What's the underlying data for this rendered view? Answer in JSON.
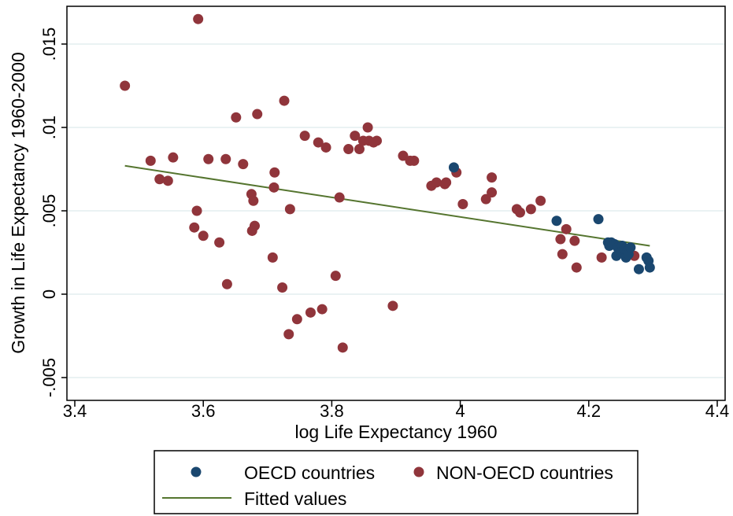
{
  "chart_data": {
    "type": "scatter",
    "xlabel": "log Life Expectancy 1960",
    "ylabel": "Growth in Life Expectancy 1960-2000",
    "xlim": [
      3.4,
      4.4
    ],
    "ylim": [
      -0.0055,
      0.0175
    ],
    "x_ticks": [
      {
        "value": 3.4,
        "label": "3.4"
      },
      {
        "value": 3.6,
        "label": "3.6"
      },
      {
        "value": 3.8,
        "label": "3.8"
      },
      {
        "value": 4.0,
        "label": "4"
      },
      {
        "value": 4.2,
        "label": "4.2"
      },
      {
        "value": 4.4,
        "label": "4.4"
      }
    ],
    "y_ticks": [
      {
        "value": -0.005,
        "label": "-.005"
      },
      {
        "value": 0,
        "label": "0"
      },
      {
        "value": 0.005,
        "label": ".005"
      },
      {
        "value": 0.01,
        "label": ".01"
      },
      {
        "value": 0.015,
        "label": ".015"
      }
    ],
    "grid": "horizontal",
    "legend_position": "bottom",
    "colors": {
      "oecd": "#1a476f",
      "non_oecd": "#90353b",
      "fitted": "#55752f"
    },
    "series": [
      {
        "name": "OECD countries",
        "kind": "points",
        "color": "#1a476f",
        "points": [
          [
            3.99,
            0.0076
          ],
          [
            4.15,
            0.0044
          ],
          [
            4.215,
            0.0045
          ],
          [
            4.23,
            0.0031
          ],
          [
            4.232,
            0.0029
          ],
          [
            4.235,
            0.0031
          ],
          [
            4.24,
            0.003
          ],
          [
            4.243,
            0.0023
          ],
          [
            4.245,
            0.0028
          ],
          [
            4.25,
            0.0025
          ],
          [
            4.252,
            0.0029
          ],
          [
            4.255,
            0.0027
          ],
          [
            4.258,
            0.0022
          ],
          [
            4.26,
            0.0026
          ],
          [
            4.262,
            0.0024
          ],
          [
            4.265,
            0.0028
          ],
          [
            4.278,
            0.0015
          ],
          [
            4.29,
            0.0022
          ],
          [
            4.293,
            0.002
          ],
          [
            4.295,
            0.0016
          ]
        ]
      },
      {
        "name": "NON-OECD countries",
        "kind": "points",
        "color": "#90353b",
        "points": [
          [
            3.478,
            0.0125
          ],
          [
            3.518,
            0.008
          ],
          [
            3.532,
            0.0069
          ],
          [
            3.545,
            0.0068
          ],
          [
            3.553,
            0.0082
          ],
          [
            3.586,
            0.004
          ],
          [
            3.59,
            0.005
          ],
          [
            3.592,
            0.0165
          ],
          [
            3.6,
            0.0035
          ],
          [
            3.608,
            0.0081
          ],
          [
            3.625,
            0.0031
          ],
          [
            3.635,
            0.0081
          ],
          [
            3.637,
            0.0006
          ],
          [
            3.651,
            0.0106
          ],
          [
            3.662,
            0.0078
          ],
          [
            3.675,
            0.006
          ],
          [
            3.676,
            0.0038
          ],
          [
            3.678,
            0.0056
          ],
          [
            3.68,
            0.0041
          ],
          [
            3.684,
            0.0108
          ],
          [
            3.708,
            0.0022
          ],
          [
            3.71,
            0.0064
          ],
          [
            3.711,
            0.0073
          ],
          [
            3.723,
            0.0004
          ],
          [
            3.726,
            0.0116
          ],
          [
            3.733,
            -0.0024
          ],
          [
            3.735,
            0.0051
          ],
          [
            3.746,
            -0.0015
          ],
          [
            3.758,
            0.0095
          ],
          [
            3.767,
            -0.0011
          ],
          [
            3.779,
            0.0091
          ],
          [
            3.785,
            -0.0009
          ],
          [
            3.791,
            0.0088
          ],
          [
            3.806,
            0.0011
          ],
          [
            3.812,
            0.0058
          ],
          [
            3.817,
            -0.0032
          ],
          [
            3.826,
            0.0087
          ],
          [
            3.836,
            0.0095
          ],
          [
            3.843,
            0.0087
          ],
          [
            3.849,
            0.0092
          ],
          [
            3.856,
            0.01
          ],
          [
            3.858,
            0.0092
          ],
          [
            3.865,
            0.0091
          ],
          [
            3.87,
            0.0092
          ],
          [
            3.895,
            -0.0007
          ],
          [
            3.911,
            0.0083
          ],
          [
            3.922,
            0.008
          ],
          [
            3.928,
            0.008
          ],
          [
            3.955,
            0.0065
          ],
          [
            3.963,
            0.0067
          ],
          [
            3.976,
            0.0066
          ],
          [
            3.978,
            0.0067
          ],
          [
            3.994,
            0.0073
          ],
          [
            4.004,
            0.0054
          ],
          [
            4.04,
            0.0057
          ],
          [
            4.049,
            0.007
          ],
          [
            4.049,
            0.0061
          ],
          [
            4.088,
            0.0051
          ],
          [
            4.093,
            0.0049
          ],
          [
            4.11,
            0.0051
          ],
          [
            4.125,
            0.0056
          ],
          [
            4.156,
            0.0033
          ],
          [
            4.159,
            0.0024
          ],
          [
            4.165,
            0.0039
          ],
          [
            4.178,
            0.0032
          ],
          [
            4.181,
            0.0016
          ],
          [
            4.22,
            0.0022
          ],
          [
            4.271,
            0.0023
          ]
        ]
      },
      {
        "name": "Fitted values",
        "kind": "line",
        "color": "#55752f",
        "x": [
          3.478,
          4.295
        ],
        "values": [
          0.0077,
          0.0029
        ]
      }
    ]
  }
}
